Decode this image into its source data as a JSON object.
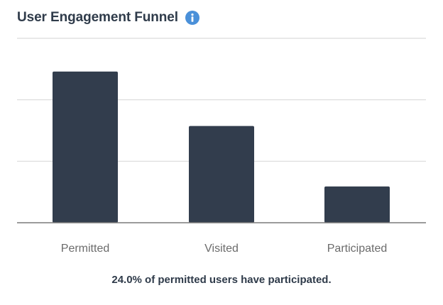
{
  "header": {
    "title": "User Engagement Funnel",
    "info_icon": "info-icon"
  },
  "colors": {
    "bar": "#323d4d",
    "grid": "#d9d9d9",
    "axis": "#7a7a7a",
    "tick_label": "#6b6b6b",
    "info_icon": "#4a90d9"
  },
  "chart_data": {
    "type": "bar",
    "categories": [
      "Permitted",
      "Visited",
      "Participated"
    ],
    "values": [
      100,
      64,
      24
    ],
    "ylim": [
      0,
      122
    ],
    "grid": true,
    "gridlines": [
      40.67,
      81.33,
      122
    ],
    "title": "",
    "xlabel": "",
    "ylabel": ""
  },
  "caption": "24.0% of permitted users have participated."
}
